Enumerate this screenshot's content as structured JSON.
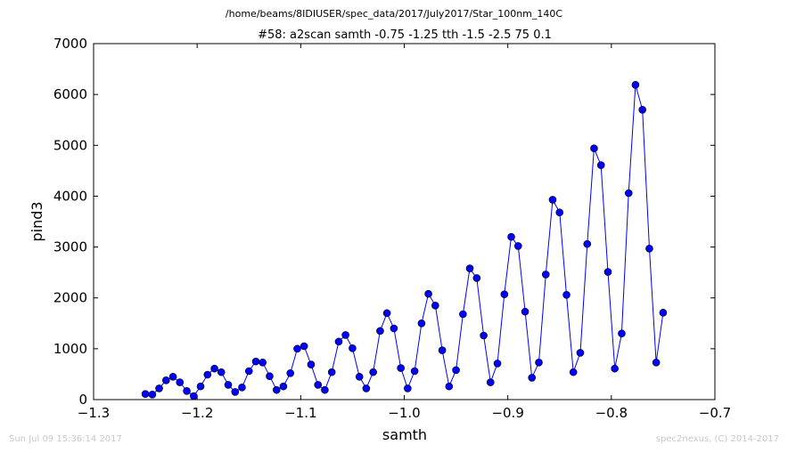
{
  "figure": {
    "suptitle": "/home/beams/8IDIUSER/spec_data/2017/July2017/Star_100nm_140C",
    "footer_left": "Sun Jul 09 15:36:14 2017",
    "footer_right": "spec2nexus, (C) 2014-2017"
  },
  "chart_data": {
    "type": "line",
    "title": "#58: a2scan  samth -0.75 -1.25  tth -1.5 -2.5  75 0.1",
    "xlabel": "samth",
    "ylabel": "pind3",
    "xlim": [
      -1.3,
      -0.7
    ],
    "ylim": [
      0,
      7000
    ],
    "xticks": [
      -1.3,
      -1.2,
      -1.1,
      -1.0,
      -0.9,
      -0.8,
      -0.7
    ],
    "xtick_labels": [
      "−1.3",
      "−1.2",
      "−1.1",
      "−1.0",
      "−0.9",
      "−0.8",
      "−0.7"
    ],
    "yticks": [
      0,
      1000,
      2000,
      3000,
      4000,
      5000,
      6000,
      7000
    ],
    "ytick_labels": [
      "0",
      "1000",
      "2000",
      "3000",
      "4000",
      "5000",
      "6000",
      "7000"
    ],
    "grid": false,
    "series": [
      {
        "color": "#0000ff",
        "marker": "circle",
        "x": [
          -1.25,
          -1.2433,
          -1.2367,
          -1.23,
          -1.2233,
          -1.2167,
          -1.21,
          -1.2033,
          -1.1967,
          -1.19,
          -1.1833,
          -1.1767,
          -1.17,
          -1.1633,
          -1.1567,
          -1.15,
          -1.1433,
          -1.1367,
          -1.13,
          -1.1233,
          -1.1167,
          -1.11,
          -1.1033,
          -1.0967,
          -1.09,
          -1.0833,
          -1.0767,
          -1.07,
          -1.0633,
          -1.0567,
          -1.05,
          -1.0433,
          -1.0367,
          -1.03,
          -1.0233,
          -1.0167,
          -1.01,
          -1.0033,
          -0.9967,
          -0.99,
          -0.9833,
          -0.9767,
          -0.97,
          -0.9633,
          -0.9567,
          -0.95,
          -0.9433,
          -0.9367,
          -0.93,
          -0.9233,
          -0.9167,
          -0.91,
          -0.9033,
          -0.8967,
          -0.89,
          -0.8833,
          -0.8767,
          -0.87,
          -0.8633,
          -0.8567,
          -0.85,
          -0.8433,
          -0.8367,
          -0.83,
          -0.8233,
          -0.8167,
          -0.81,
          -0.8033,
          -0.7967,
          -0.79,
          -0.7833,
          -0.7767,
          -0.77,
          -0.7633,
          -0.7567,
          -0.75
        ],
        "y": [
          110,
          100,
          220,
          380,
          450,
          340,
          170,
          70,
          260,
          490,
          610,
          540,
          290,
          150,
          240,
          560,
          750,
          730,
          460,
          190,
          260,
          520,
          1000,
          1050,
          690,
          290,
          190,
          540,
          1140,
          1270,
          1010,
          450,
          220,
          540,
          1350,
          1700,
          1400,
          620,
          220,
          560,
          1500,
          2080,
          1850,
          970,
          260,
          580,
          1680,
          2580,
          2390,
          1260,
          340,
          710,
          2070,
          3200,
          3020,
          1730,
          430,
          730,
          2460,
          3930,
          3680,
          2060,
          540,
          920,
          3060,
          4940,
          4610,
          2510,
          610,
          1300,
          4060,
          6190,
          5700,
          2970,
          730,
          1710
        ]
      }
    ]
  }
}
